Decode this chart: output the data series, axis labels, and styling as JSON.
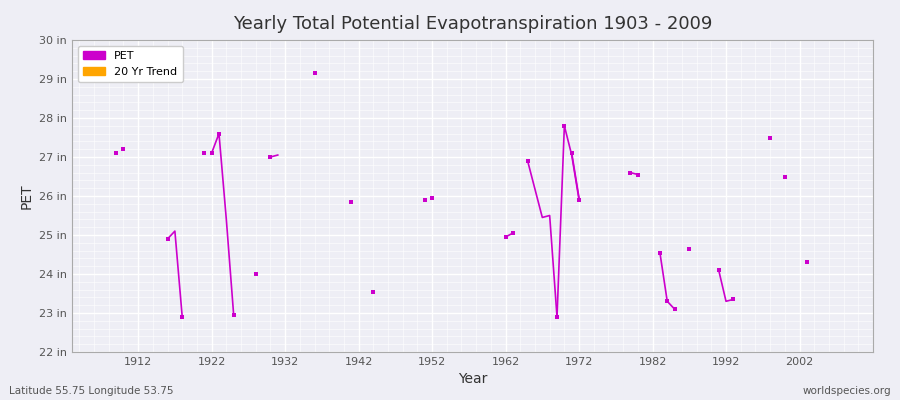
{
  "title": "Yearly Total Potential Evapotranspiration 1903 - 2009",
  "xlabel": "Year",
  "ylabel": "PET",
  "xlim": [
    1903,
    2012
  ],
  "ylim": [
    22,
    30
  ],
  "yticks": [
    22,
    23,
    24,
    25,
    26,
    27,
    28,
    29,
    30
  ],
  "ytick_labels": [
    "22 in",
    "23 in",
    "24 in",
    "25 in",
    "26 in",
    "27 in",
    "28 in",
    "29 in",
    "30 in"
  ],
  "xticks": [
    1912,
    1922,
    1932,
    1942,
    1952,
    1962,
    1972,
    1982,
    1992,
    2002
  ],
  "pet_color": "#cc00cc",
  "trend_color": "#FFA500",
  "background_color": "#eeeef5",
  "grid_major_color": "#ffffff",
  "grid_minor_color": "#e8e8f0",
  "watermark": "worldspecies.org",
  "bottom_left": "Latitude 55.75 Longitude 53.75",
  "pet_segments": [
    [
      [
        1916,
        24.9
      ],
      [
        1917,
        25.1
      ],
      [
        1918,
        22.9
      ]
    ],
    [
      [
        1922,
        27.1
      ],
      [
        1923,
        27.6
      ],
      [
        1924,
        25.4
      ],
      [
        1925,
        22.95
      ]
    ],
    [
      [
        1930,
        27.0
      ],
      [
        1931,
        27.05
      ]
    ],
    [
      [
        1962,
        24.95
      ],
      [
        1963,
        25.05
      ]
    ],
    [
      [
        1965,
        26.9
      ],
      [
        1967,
        25.45
      ],
      [
        1968,
        25.5
      ],
      [
        1969,
        22.9
      ]
    ],
    [
      [
        1969,
        22.9
      ],
      [
        1970,
        27.8
      ],
      [
        1971,
        27.05
      ],
      [
        1972,
        25.9
      ]
    ],
    [
      [
        1971,
        27.1
      ],
      [
        1972,
        25.95
      ]
    ],
    [
      [
        1979,
        26.6
      ],
      [
        1980,
        26.55
      ]
    ],
    [
      [
        1983,
        24.55
      ],
      [
        1984,
        23.3
      ],
      [
        1985,
        23.1
      ]
    ],
    [
      [
        1991,
        24.1
      ],
      [
        1992,
        23.3
      ],
      [
        1993,
        23.35
      ]
    ]
  ],
  "pet_points": [
    [
      1909,
      27.1
    ],
    [
      1910,
      27.2
    ],
    [
      1916,
      24.9
    ],
    [
      1918,
      22.9
    ],
    [
      1921,
      27.1
    ],
    [
      1922,
      27.1
    ],
    [
      1923,
      27.6
    ],
    [
      1925,
      22.95
    ],
    [
      1928,
      24.0
    ],
    [
      1930,
      27.0
    ],
    [
      1936,
      29.15
    ],
    [
      1941,
      25.85
    ],
    [
      1944,
      23.55
    ],
    [
      1951,
      25.9
    ],
    [
      1952,
      25.95
    ],
    [
      1962,
      24.95
    ],
    [
      1963,
      25.05
    ],
    [
      1965,
      26.9
    ],
    [
      1969,
      22.9
    ],
    [
      1970,
      27.8
    ],
    [
      1971,
      27.1
    ],
    [
      1972,
      25.9
    ],
    [
      1979,
      26.6
    ],
    [
      1980,
      26.55
    ],
    [
      1983,
      24.55
    ],
    [
      1984,
      23.3
    ],
    [
      1985,
      23.1
    ],
    [
      1987,
      24.65
    ],
    [
      1991,
      24.1
    ],
    [
      1993,
      23.35
    ],
    [
      1998,
      27.5
    ],
    [
      2000,
      26.5
    ],
    [
      2003,
      24.3
    ]
  ]
}
